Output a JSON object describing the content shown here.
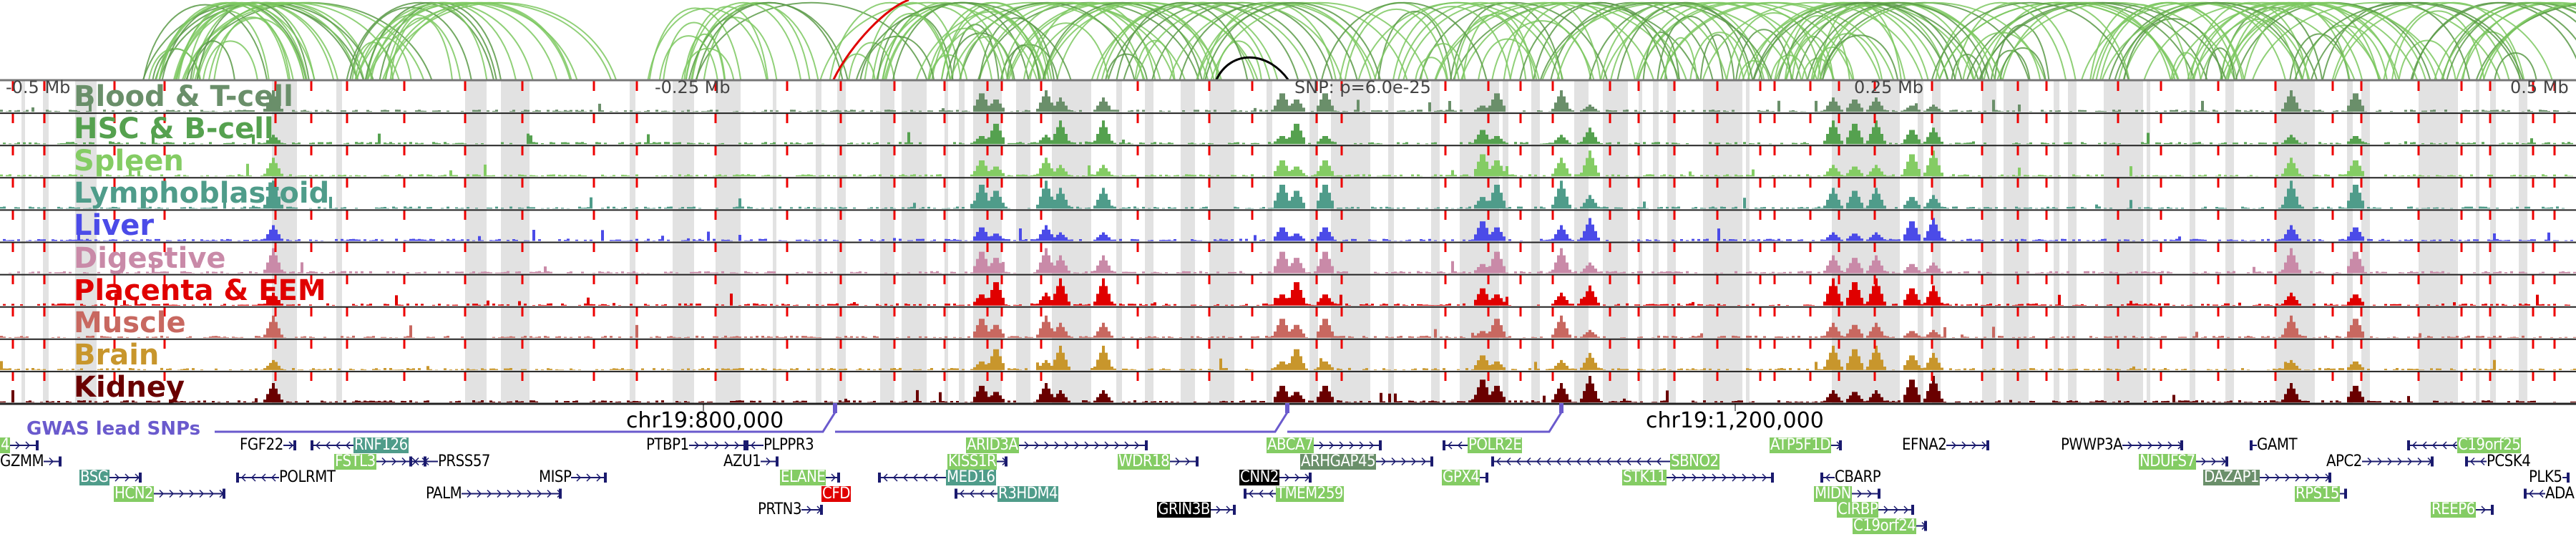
{
  "axis": {
    "left": "-0.5 Mb",
    "left_mid": "-0.25 Mb",
    "snp": "SNP: p=6.0e-25",
    "right_mid": "0.25 Mb",
    "right": "0.5 Mb"
  },
  "tracks": [
    {
      "label": "Blood & T-cell",
      "color": "#6a8f6a"
    },
    {
      "label": "HSC & B-cell",
      "color": "#55a14f"
    },
    {
      "label": "Spleen",
      "color": "#84cc64"
    },
    {
      "label": "Lymphoblastoid",
      "color": "#4f9c8a"
    },
    {
      "label": "Liver",
      "color": "#4b4be8"
    },
    {
      "label": "Digestive",
      "color": "#c98aa8"
    },
    {
      "label": "Placenta & EEM",
      "color": "#e00000"
    },
    {
      "label": "Muscle",
      "color": "#c86860"
    },
    {
      "label": "Brain",
      "color": "#c8962c"
    },
    {
      "label": "Kidney",
      "color": "#6a0000"
    }
  ],
  "coords": {
    "c1": "chr19:800,000",
    "c2": "chr19:1,200,000"
  },
  "gwas": {
    "label": "GWAS lead SNPs",
    "color": "#6a5acd"
  },
  "genes": [
    {
      "name": "4",
      "style": "green"
    },
    {
      "name": "GZMM",
      "style": "plain"
    },
    {
      "name": "FGF22",
      "style": "plain"
    },
    {
      "name": "RNF126",
      "style": "teal"
    },
    {
      "name": "FSTL3",
      "style": "green"
    },
    {
      "name": "PRSS57",
      "style": "plain"
    },
    {
      "name": "BSG",
      "style": "teal"
    },
    {
      "name": "POLRMT",
      "style": "plain"
    },
    {
      "name": "HCN2",
      "style": "green"
    },
    {
      "name": "PALM",
      "style": "plain"
    },
    {
      "name": "MISP",
      "style": "plain"
    },
    {
      "name": "PTBP1",
      "style": "plain"
    },
    {
      "name": "PLPPR3",
      "style": "plain"
    },
    {
      "name": "AZU1",
      "style": "plain"
    },
    {
      "name": "ELANE",
      "style": "green"
    },
    {
      "name": "CFD",
      "style": "red"
    },
    {
      "name": "PRTN3",
      "style": "plain"
    },
    {
      "name": "ARID3A",
      "style": "green"
    },
    {
      "name": "KISS1R",
      "style": "green"
    },
    {
      "name": "WDR18",
      "style": "green"
    },
    {
      "name": "MED16",
      "style": "teal"
    },
    {
      "name": "R3HDM4",
      "style": "teal"
    },
    {
      "name": "ABCA7",
      "style": "green"
    },
    {
      "name": "ARHGAP45",
      "style": "darkgreen"
    },
    {
      "name": "CNN2",
      "style": "black"
    },
    {
      "name": "TMEM259",
      "style": "green"
    },
    {
      "name": "GRIN3B",
      "style": "black"
    },
    {
      "name": "POLR2E",
      "style": "green"
    },
    {
      "name": "SBNO2",
      "style": "green"
    },
    {
      "name": "GPX4",
      "style": "green"
    },
    {
      "name": "STK11",
      "style": "green"
    },
    {
      "name": "ATP5F1D",
      "style": "green"
    },
    {
      "name": "EFNA2",
      "style": "plain"
    },
    {
      "name": "CBARP",
      "style": "plain"
    },
    {
      "name": "MIDN",
      "style": "green"
    },
    {
      "name": "CIRBP",
      "style": "green"
    },
    {
      "name": "C19orf24",
      "style": "green"
    },
    {
      "name": "PWWP3A",
      "style": "plain"
    },
    {
      "name": "GAMT",
      "style": "plain"
    },
    {
      "name": "NDUFS7",
      "style": "green"
    },
    {
      "name": "DAZAP1",
      "style": "darkgreen"
    },
    {
      "name": "RPS15",
      "style": "green"
    },
    {
      "name": "C19orf25",
      "style": "green"
    },
    {
      "name": "APC2",
      "style": "plain"
    },
    {
      "name": "PCSK4",
      "style": "plain"
    },
    {
      "name": "PLK5",
      "style": "plain"
    },
    {
      "name": "ADA",
      "style": "plain"
    },
    {
      "name": "REEP6",
      "style": "green"
    }
  ],
  "colors": {
    "arc": "#7cc860",
    "arc_dark": "#5a9a48",
    "enhancer_line": "#ee0000",
    "band": "#e2e2e2",
    "gene_line": "#1a1a6e",
    "green": "#84cc64",
    "teal": "#4f9c8a",
    "darkgreen": "#6a8f6a",
    "red": "#e00000",
    "black": "#000000"
  }
}
